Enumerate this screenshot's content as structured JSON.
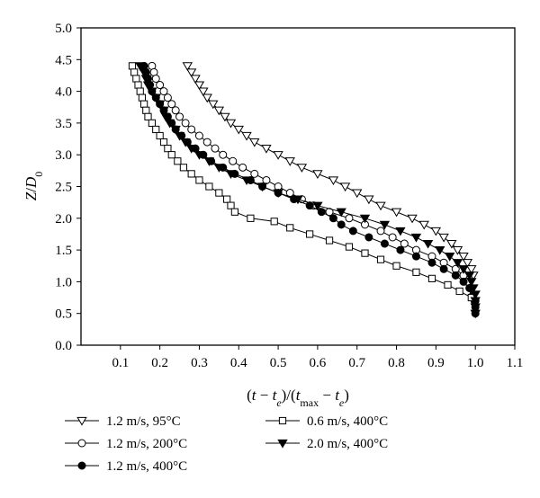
{
  "chart_data": {
    "type": "line",
    "xlabel": "(t − t_e)/(t_max − t_e)",
    "ylabel": "Z/D_0",
    "xlim": [
      0.0,
      1.1
    ],
    "ylim": [
      0.0,
      5.0
    ],
    "xticks": [
      "0.1",
      "0.2",
      "0.3",
      "0.4",
      "0.5",
      "0.6",
      "0.7",
      "0.8",
      "0.9",
      "1.0",
      "1.1"
    ],
    "yticks": [
      "0.0",
      "0.5",
      "1.0",
      "1.5",
      "2.0",
      "2.5",
      "3.0",
      "3.5",
      "4.0",
      "4.5",
      "5.0"
    ],
    "grid": false,
    "legend_position": "bottom",
    "series": [
      {
        "name": "1.2 m/s, 95°C",
        "marker": "triangle-down-open",
        "points": [
          [
            0.27,
            4.4
          ],
          [
            0.28,
            4.3
          ],
          [
            0.29,
            4.2
          ],
          [
            0.3,
            4.1
          ],
          [
            0.31,
            4.0
          ],
          [
            0.32,
            3.9
          ],
          [
            0.335,
            3.8
          ],
          [
            0.35,
            3.7
          ],
          [
            0.365,
            3.6
          ],
          [
            0.38,
            3.5
          ],
          [
            0.4,
            3.4
          ],
          [
            0.42,
            3.3
          ],
          [
            0.44,
            3.2
          ],
          [
            0.47,
            3.1
          ],
          [
            0.5,
            3.0
          ],
          [
            0.53,
            2.9
          ],
          [
            0.56,
            2.8
          ],
          [
            0.6,
            2.7
          ],
          [
            0.64,
            2.6
          ],
          [
            0.67,
            2.5
          ],
          [
            0.7,
            2.4
          ],
          [
            0.73,
            2.3
          ],
          [
            0.76,
            2.2
          ],
          [
            0.8,
            2.1
          ],
          [
            0.84,
            2.0
          ],
          [
            0.87,
            1.9
          ],
          [
            0.9,
            1.8
          ],
          [
            0.92,
            1.7
          ],
          [
            0.94,
            1.6
          ],
          [
            0.955,
            1.5
          ],
          [
            0.97,
            1.4
          ],
          [
            0.98,
            1.3
          ],
          [
            0.99,
            1.2
          ],
          [
            0.995,
            1.1
          ]
        ]
      },
      {
        "name": "1.2 m/s, 200°C",
        "marker": "circle-open",
        "points": [
          [
            0.18,
            4.4
          ],
          [
            0.185,
            4.3
          ],
          [
            0.19,
            4.2
          ],
          [
            0.2,
            4.1
          ],
          [
            0.21,
            4.0
          ],
          [
            0.22,
            3.9
          ],
          [
            0.23,
            3.8
          ],
          [
            0.24,
            3.7
          ],
          [
            0.25,
            3.6
          ],
          [
            0.265,
            3.5
          ],
          [
            0.28,
            3.4
          ],
          [
            0.3,
            3.3
          ],
          [
            0.32,
            3.2
          ],
          [
            0.34,
            3.1
          ],
          [
            0.36,
            3.0
          ],
          [
            0.385,
            2.9
          ],
          [
            0.41,
            2.8
          ],
          [
            0.44,
            2.7
          ],
          [
            0.47,
            2.6
          ],
          [
            0.5,
            2.5
          ],
          [
            0.53,
            2.4
          ],
          [
            0.56,
            2.3
          ],
          [
            0.59,
            2.2
          ],
          [
            0.63,
            2.1
          ],
          [
            0.68,
            2.0
          ],
          [
            0.72,
            1.9
          ],
          [
            0.76,
            1.8
          ],
          [
            0.79,
            1.7
          ],
          [
            0.82,
            1.6
          ],
          [
            0.85,
            1.5
          ],
          [
            0.89,
            1.4
          ],
          [
            0.92,
            1.3
          ],
          [
            0.95,
            1.2
          ],
          [
            0.97,
            1.1
          ],
          [
            0.98,
            1.0
          ],
          [
            0.99,
            0.9
          ],
          [
            0.995,
            0.8
          ],
          [
            0.998,
            0.7
          ]
        ]
      },
      {
        "name": "1.2 m/s, 400°C",
        "marker": "circle-filled",
        "points": [
          [
            0.16,
            4.4
          ],
          [
            0.165,
            4.3
          ],
          [
            0.17,
            4.2
          ],
          [
            0.175,
            4.1
          ],
          [
            0.18,
            4.0
          ],
          [
            0.19,
            3.9
          ],
          [
            0.2,
            3.8
          ],
          [
            0.21,
            3.7
          ],
          [
            0.22,
            3.6
          ],
          [
            0.23,
            3.5
          ],
          [
            0.24,
            3.4
          ],
          [
            0.255,
            3.3
          ],
          [
            0.27,
            3.2
          ],
          [
            0.29,
            3.1
          ],
          [
            0.31,
            3.0
          ],
          [
            0.33,
            2.9
          ],
          [
            0.36,
            2.8
          ],
          [
            0.39,
            2.7
          ],
          [
            0.43,
            2.6
          ],
          [
            0.46,
            2.5
          ],
          [
            0.5,
            2.4
          ],
          [
            0.54,
            2.3
          ],
          [
            0.58,
            2.2
          ],
          [
            0.61,
            2.1
          ],
          [
            0.64,
            2.0
          ],
          [
            0.66,
            1.9
          ],
          [
            0.69,
            1.8
          ],
          [
            0.73,
            1.7
          ],
          [
            0.77,
            1.6
          ],
          [
            0.81,
            1.5
          ],
          [
            0.85,
            1.4
          ],
          [
            0.89,
            1.3
          ],
          [
            0.92,
            1.2
          ],
          [
            0.95,
            1.1
          ],
          [
            0.97,
            1.0
          ],
          [
            0.985,
            0.9
          ],
          [
            0.995,
            0.8
          ],
          [
            1.0,
            0.7
          ],
          [
            1.0,
            0.6
          ],
          [
            1.0,
            0.5
          ]
        ]
      },
      {
        "name": "0.6 m/s, 400°C",
        "marker": "square-open",
        "points": [
          [
            0.13,
            4.4
          ],
          [
            0.135,
            4.3
          ],
          [
            0.14,
            4.2
          ],
          [
            0.145,
            4.1
          ],
          [
            0.15,
            4.0
          ],
          [
            0.155,
            3.9
          ],
          [
            0.16,
            3.8
          ],
          [
            0.165,
            3.7
          ],
          [
            0.17,
            3.6
          ],
          [
            0.18,
            3.5
          ],
          [
            0.19,
            3.4
          ],
          [
            0.2,
            3.3
          ],
          [
            0.21,
            3.2
          ],
          [
            0.22,
            3.1
          ],
          [
            0.23,
            3.0
          ],
          [
            0.245,
            2.9
          ],
          [
            0.26,
            2.8
          ],
          [
            0.28,
            2.7
          ],
          [
            0.3,
            2.6
          ],
          [
            0.325,
            2.5
          ],
          [
            0.35,
            2.4
          ],
          [
            0.37,
            2.3
          ],
          [
            0.38,
            2.2
          ],
          [
            0.39,
            2.1
          ],
          [
            0.43,
            2.0
          ],
          [
            0.49,
            1.95
          ],
          [
            0.53,
            1.85
          ],
          [
            0.58,
            1.75
          ],
          [
            0.63,
            1.65
          ],
          [
            0.68,
            1.55
          ],
          [
            0.72,
            1.45
          ],
          [
            0.76,
            1.35
          ],
          [
            0.8,
            1.25
          ],
          [
            0.85,
            1.15
          ],
          [
            0.89,
            1.05
          ],
          [
            0.93,
            0.95
          ],
          [
            0.96,
            0.85
          ],
          [
            0.99,
            0.75
          ]
        ]
      },
      {
        "name": "2.0 m/s, 400°C",
        "marker": "triangle-down-filled",
        "points": [
          [
            0.15,
            4.4
          ],
          [
            0.16,
            4.3
          ],
          [
            0.165,
            4.2
          ],
          [
            0.17,
            4.1
          ],
          [
            0.18,
            4.0
          ],
          [
            0.19,
            3.9
          ],
          [
            0.2,
            3.8
          ],
          [
            0.21,
            3.7
          ],
          [
            0.215,
            3.6
          ],
          [
            0.225,
            3.5
          ],
          [
            0.24,
            3.4
          ],
          [
            0.25,
            3.3
          ],
          [
            0.265,
            3.2
          ],
          [
            0.28,
            3.1
          ],
          [
            0.3,
            3.0
          ],
          [
            0.325,
            2.9
          ],
          [
            0.35,
            2.8
          ],
          [
            0.38,
            2.7
          ],
          [
            0.42,
            2.6
          ],
          [
            0.46,
            2.5
          ],
          [
            0.5,
            2.4
          ],
          [
            0.55,
            2.3
          ],
          [
            0.6,
            2.2
          ],
          [
            0.66,
            2.1
          ],
          [
            0.72,
            2.0
          ],
          [
            0.77,
            1.9
          ],
          [
            0.81,
            1.8
          ],
          [
            0.85,
            1.7
          ],
          [
            0.88,
            1.6
          ],
          [
            0.91,
            1.5
          ],
          [
            0.935,
            1.4
          ],
          [
            0.955,
            1.3
          ],
          [
            0.97,
            1.2
          ],
          [
            0.985,
            1.1
          ],
          [
            0.99,
            1.0
          ],
          [
            0.995,
            0.9
          ],
          [
            1.0,
            0.8
          ],
          [
            1.0,
            0.7
          ],
          [
            1.0,
            0.6
          ],
          [
            1.0,
            0.5
          ]
        ]
      }
    ],
    "legend": [
      {
        "series": 0,
        "label": "1.2 m/s, 95°C"
      },
      {
        "series": 3,
        "label": "0.6 m/s, 400°C"
      },
      {
        "series": 1,
        "label": "1.2 m/s, 200°C"
      },
      {
        "series": 4,
        "label": "2.0 m/s, 400°C"
      },
      {
        "series": 2,
        "label": "1.2 m/s, 400°C"
      }
    ]
  }
}
